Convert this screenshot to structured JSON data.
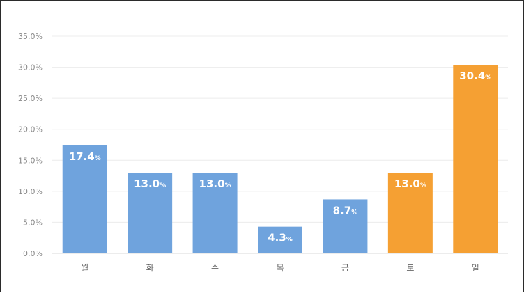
{
  "chart_data": {
    "type": "bar",
    "categories": [
      "월",
      "화",
      "수",
      "목",
      "금",
      "토",
      "일"
    ],
    "values": [
      17.4,
      13.0,
      13.0,
      4.3,
      8.7,
      13.0,
      30.4
    ],
    "value_labels": [
      "17.4",
      "13.0",
      "13.0",
      "4.3",
      "8.7",
      "13.0",
      "30.4"
    ],
    "value_unit": "%",
    "colors": [
      "#6fa3dd",
      "#6fa3dd",
      "#6fa3dd",
      "#6fa3dd",
      "#6fa3dd",
      "#f5a033",
      "#f5a033"
    ],
    "y_ticks": [
      "0.0%",
      "5.0%",
      "10.0%",
      "15.0%",
      "20.0%",
      "25.0%",
      "30.0%",
      "35.0%"
    ],
    "ylim": [
      0,
      35
    ],
    "grid": true,
    "title": "",
    "xlabel": "",
    "ylabel": ""
  }
}
